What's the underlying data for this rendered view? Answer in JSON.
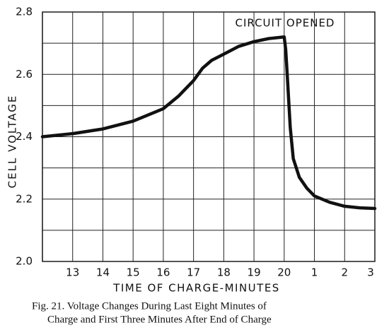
{
  "chart_data": {
    "type": "line",
    "annotation": "CIRCUIT OPENED",
    "xlabel": "TIME OF CHARGE-MINUTES",
    "ylabel": "CELL VOLTAGE",
    "caption": [
      "Fig. 21.  Voltage Changes During Last Eight Minutes of",
      "Charge and First Three Minutes After End of Charge"
    ],
    "x": [
      12,
      13,
      14,
      15,
      16,
      16.5,
      17,
      17.3,
      17.6,
      18,
      18.5,
      19,
      19.5,
      20,
      20.05,
      20.1,
      20.2,
      20.3,
      20.5,
      20.75,
      21,
      21.5,
      22,
      22.5,
      23
    ],
    "values": [
      2.4,
      2.41,
      2.425,
      2.45,
      2.49,
      2.53,
      2.58,
      2.62,
      2.645,
      2.665,
      2.69,
      2.705,
      2.715,
      2.72,
      2.68,
      2.6,
      2.43,
      2.33,
      2.27,
      2.235,
      2.21,
      2.19,
      2.177,
      2.172,
      2.17
    ],
    "color": "#111111",
    "xlim": [
      12,
      23
    ],
    "xticks": [
      13,
      14,
      15,
      16,
      17,
      18,
      19,
      20,
      {
        "value": 21,
        "label": "1"
      },
      {
        "value": 22,
        "label": "2"
      },
      {
        "value": 23,
        "label": "3"
      }
    ],
    "ylim": [
      2.0,
      2.8
    ],
    "yticks": [
      {
        "value": 2.0,
        "label": "2.0"
      },
      2.2,
      2.4,
      2.6,
      2.8
    ],
    "yminor": [
      2.1,
      2.3,
      2.5,
      2.7
    ],
    "grid": true
  }
}
